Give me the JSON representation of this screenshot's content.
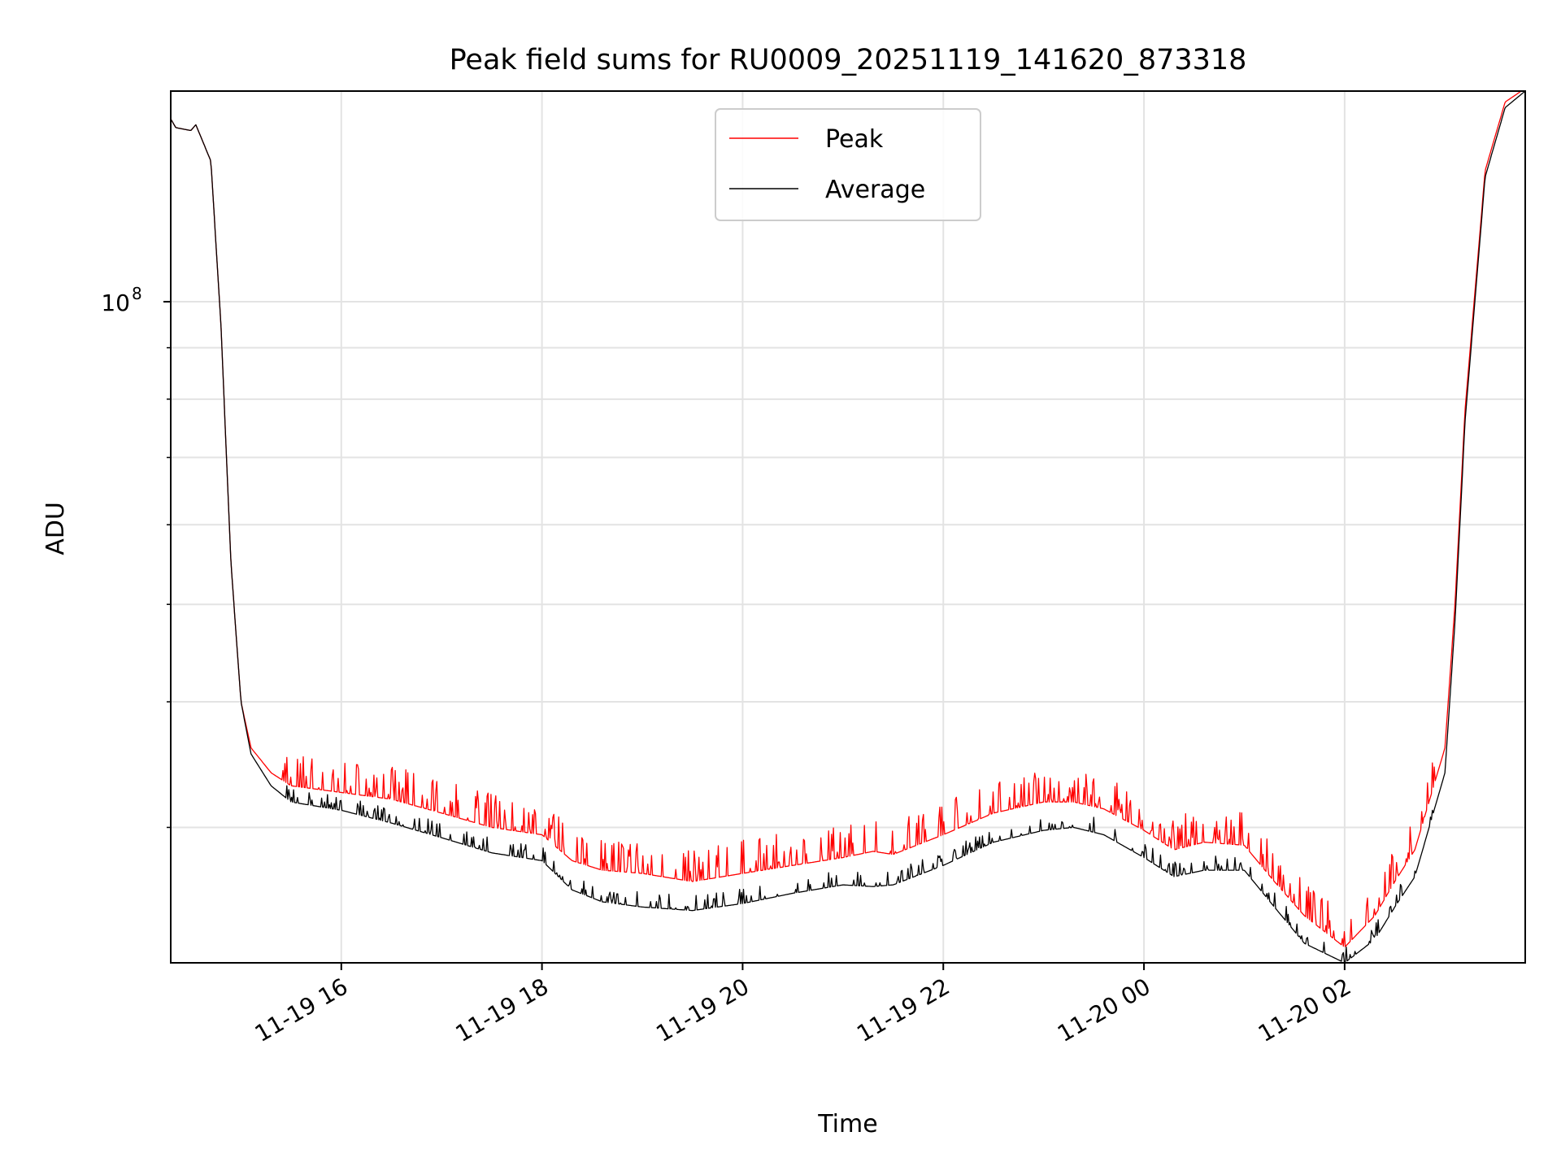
{
  "chart_data": {
    "type": "line",
    "title": "Peak field sums for RU0009_20251119_141620_873318",
    "xlabel": "Time",
    "ylabel": "ADU",
    "yscale": "log",
    "ylim": [
      22000000,
      162000000
    ],
    "xlim_hours": [
      14.3,
      27.8
    ],
    "x_ticks": [
      {
        "hour": 16,
        "label": "11-19 16"
      },
      {
        "hour": 18,
        "label": "11-19 18"
      },
      {
        "hour": 20,
        "label": "11-19 20"
      },
      {
        "hour": 22,
        "label": "11-19 22"
      },
      {
        "hour": 24,
        "label": "11-20 00"
      },
      {
        "hour": 26,
        "label": "11-20 02"
      }
    ],
    "y_major_ticks": [
      {
        "value": 100000000,
        "base": "10",
        "exp": "8"
      }
    ],
    "y_minor_ticks": [
      30000000,
      40000000,
      50000000,
      60000000,
      70000000,
      80000000,
      90000000,
      200000000
    ],
    "grid": true,
    "legend_position": "upper-center",
    "series": [
      {
        "name": "Peak",
        "color": "#ff0000",
        "x_hours": [
          14.3,
          14.35,
          14.5,
          14.55,
          14.7,
          14.8,
          14.9,
          15.0,
          15.1,
          15.3,
          15.5,
          16.0,
          16.5,
          17.0,
          17.5,
          18.0,
          18.3,
          18.6,
          19.0,
          19.5,
          20.0,
          20.5,
          21.0,
          21.3,
          21.5,
          22.0,
          22.5,
          23.0,
          23.3,
          23.6,
          24.0,
          24.3,
          24.6,
          25.0,
          25.3,
          25.6,
          26.0,
          26.3,
          26.5,
          26.7,
          27.0,
          27.1,
          27.2,
          27.4,
          27.6,
          27.8
        ],
        "values": [
          152000000,
          149000000,
          148000000,
          150000000,
          138000000,
          95000000,
          55000000,
          40000000,
          36000000,
          34000000,
          33000000,
          32500000,
          32000000,
          31000000,
          30000000,
          29500000,
          27800000,
          27200000,
          27000000,
          26500000,
          27000000,
          27500000,
          28000000,
          28400000,
          28200000,
          29500000,
          31000000,
          31800000,
          31800000,
          31300000,
          29800000,
          28500000,
          29000000,
          28800000,
          26500000,
          24500000,
          22800000,
          24500000,
          26500000,
          28500000,
          36000000,
          50000000,
          78000000,
          135000000,
          158000000,
          163000000
        ]
      },
      {
        "name": "Average",
        "color": "#000000",
        "x_hours": [
          14.3,
          14.35,
          14.5,
          14.55,
          14.7,
          14.8,
          14.9,
          15.0,
          15.1,
          15.3,
          15.5,
          16.0,
          16.5,
          17.0,
          17.5,
          18.0,
          18.3,
          18.6,
          19.0,
          19.5,
          20.0,
          20.5,
          21.0,
          21.3,
          21.5,
          22.0,
          22.5,
          23.0,
          23.3,
          23.6,
          24.0,
          24.3,
          24.6,
          25.0,
          25.3,
          25.6,
          26.0,
          26.3,
          26.5,
          26.7,
          27.0,
          27.1,
          27.2,
          27.4,
          27.6,
          27.8
        ],
        "values": [
          152000000,
          149000000,
          148000000,
          150000000,
          138000000,
          95000000,
          55000000,
          40000000,
          35500000,
          33000000,
          31800000,
          31200000,
          30300000,
          29300000,
          28300000,
          27800000,
          26000000,
          25300000,
          25000000,
          24800000,
          25200000,
          25800000,
          26300000,
          26200000,
          26300000,
          27500000,
          29000000,
          29800000,
          30000000,
          29500000,
          28000000,
          26800000,
          27200000,
          27200000,
          25000000,
          23000000,
          22000000,
          23200000,
          25000000,
          26800000,
          34000000,
          48000000,
          76000000,
          133000000,
          156000000,
          162000000
        ]
      }
    ]
  }
}
